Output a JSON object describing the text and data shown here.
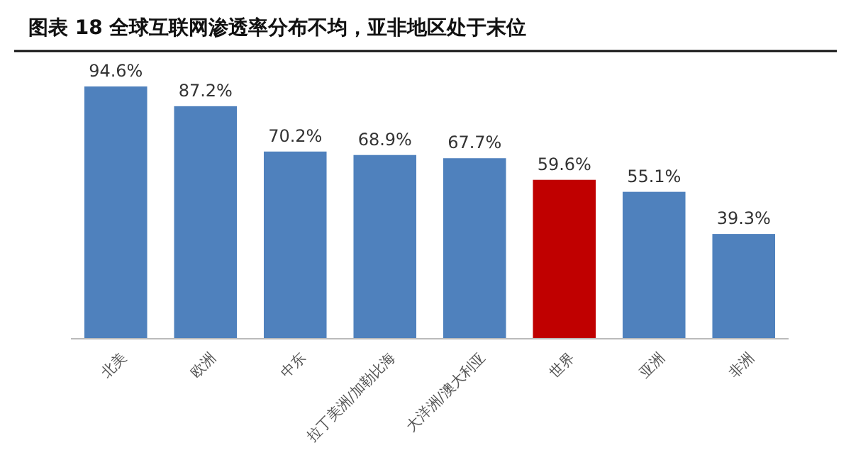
{
  "chart_data": {
    "type": "bar",
    "title": "图表 18  全球互联网渗透率分布不均，亚非地区处于末位",
    "categories": [
      "北美",
      "欧洲",
      "中东",
      "拉丁美洲/加勒比海",
      "大洋洲/澳大利亚",
      "世界",
      "亚洲",
      "非洲"
    ],
    "values": [
      94.6,
      87.2,
      70.2,
      68.9,
      67.7,
      59.6,
      55.1,
      39.3
    ],
    "colors": [
      "#4f81bd",
      "#4f81bd",
      "#4f81bd",
      "#4f81bd",
      "#4f81bd",
      "#c00000",
      "#4f81bd",
      "#4f81bd"
    ],
    "value_labels": [
      "94.6%",
      "87.2%",
      "70.2%",
      "68.9%",
      "67.7%",
      "59.6%",
      "55.1%",
      "39.3%"
    ]
  }
}
